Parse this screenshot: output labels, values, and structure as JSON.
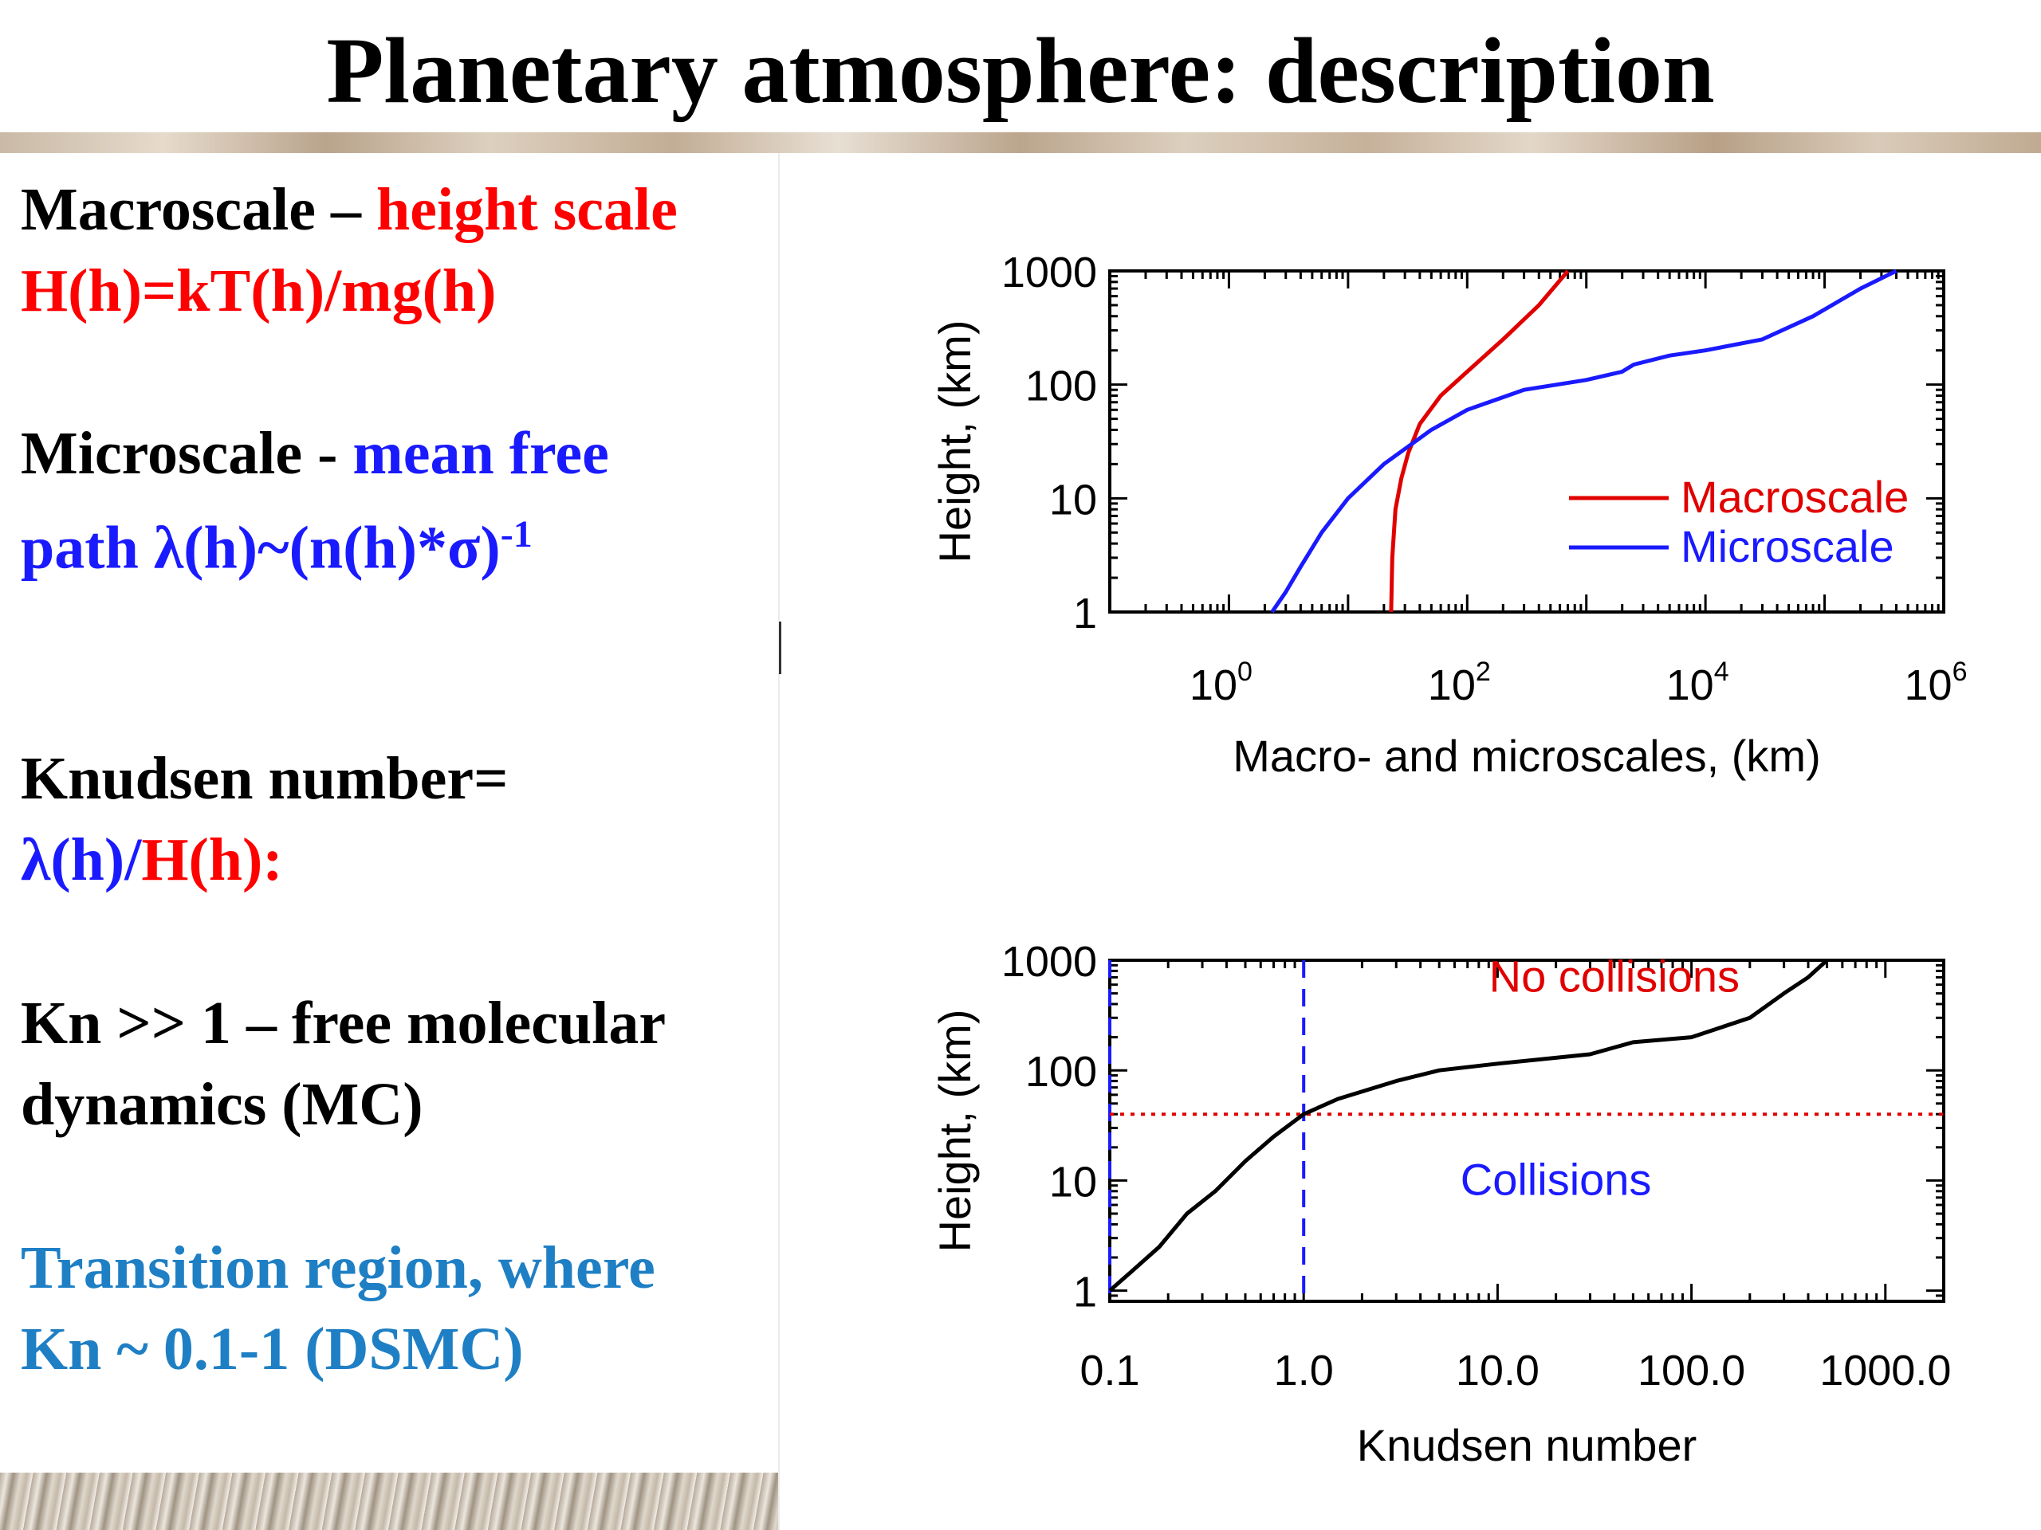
{
  "slide": {
    "title": "Planetary atmosphere: description",
    "left_text": {
      "macro_label": "Macroscale –",
      "macro_highlight": "height scale",
      "macro_formula": "H(h)=kT(h)/mg(h)",
      "micro_label": "Microscale -",
      "micro_highlight_line1": "mean free",
      "micro_formula": "path λ(h)~(n(h)*σ)",
      "micro_formula_exp": "-1",
      "knudsen_label": "Knudsen number=",
      "knudsen_lambda": "λ(h)/",
      "knudsen_H": "H(h):",
      "kn_line1": "Kn >> 1 – free molecular",
      "kn_line2": "dynamics  (MC)",
      "transition_line1": "Transition region, where",
      "transition_line2": "Kn ~ 0.1-1  (DSMC)"
    }
  },
  "colors": {
    "red": "#ff0000",
    "blue": "#1a1aff",
    "teal": "#1f7fc4",
    "black": "#000000"
  },
  "chart_data": [
    {
      "type": "line",
      "xscale": "log",
      "yscale": "log",
      "xlim": [
        0.1,
        1000000
      ],
      "ylim": [
        1,
        1000
      ],
      "xlabel": "Macro- and microscales, (km)",
      "ylabel": "Height, (km)",
      "x_ticks": [
        {
          "value": 1,
          "base": "10",
          "exp": "0"
        },
        {
          "value": 100,
          "base": "10",
          "exp": "2"
        },
        {
          "value": 10000,
          "base": "10",
          "exp": "4"
        },
        {
          "value": 1000000,
          "base": "10",
          "exp": "6"
        }
      ],
      "y_ticks": [
        {
          "value": 1,
          "label": "1"
        },
        {
          "value": 10,
          "label": "10"
        },
        {
          "value": 100,
          "label": "100"
        },
        {
          "value": 1000,
          "label": "1000"
        }
      ],
      "legend_position": "bottom-right",
      "series": [
        {
          "name": "Macroscale",
          "color": "#e00000",
          "x": [
            23,
            23.5,
            25,
            28,
            32,
            40,
            60,
            100,
            200,
            400,
            700
          ],
          "y": [
            1,
            3,
            8,
            15,
            25,
            45,
            80,
            130,
            250,
            500,
            1000
          ]
        },
        {
          "name": "Microscale",
          "color": "#1a1aff",
          "x": [
            2.3,
            3,
            4,
            6,
            10,
            20,
            50,
            100,
            300,
            1000,
            2000,
            2500,
            5000,
            10000,
            30000,
            80000,
            200000,
            400000
          ],
          "y": [
            1,
            1.5,
            2.5,
            5,
            10,
            20,
            40,
            60,
            90,
            110,
            130,
            150,
            180,
            200,
            250,
            400,
            700,
            1000
          ]
        }
      ]
    },
    {
      "type": "line",
      "xscale": "log",
      "yscale": "log",
      "xlim": [
        0.1,
        2000
      ],
      "ylim": [
        0.8,
        1000
      ],
      "xlabel": "Knudsen number",
      "ylabel": "Height, (km)",
      "x_ticks": [
        {
          "value": 0.1,
          "label": "0.1"
        },
        {
          "value": 1,
          "label": "1.0"
        },
        {
          "value": 10,
          "label": "10.0"
        },
        {
          "value": 100,
          "label": "100.0"
        },
        {
          "value": 1000,
          "label": "1000.0"
        }
      ],
      "y_ticks": [
        {
          "value": 1,
          "label": "1"
        },
        {
          "value": 10,
          "label": "10"
        },
        {
          "value": 100,
          "label": "100"
        },
        {
          "value": 1000,
          "label": "1000"
        }
      ],
      "vlines": [
        0.1,
        1
      ],
      "vline_color": "#1a1aff",
      "hline": 40,
      "hline_color": "#e00000",
      "annotations": [
        {
          "text": "No collisions",
          "x": 40,
          "y": 700,
          "color": "#e00000"
        },
        {
          "text": "Collisions",
          "x": 20,
          "y": 10,
          "color": "#1a1aff"
        }
      ],
      "series": [
        {
          "color": "#000000",
          "x": [
            0.1,
            0.13,
            0.18,
            0.25,
            0.35,
            0.5,
            0.7,
            1,
            1.5,
            3,
            5,
            10,
            30,
            50,
            100,
            200,
            300,
            400,
            500
          ],
          "y": [
            1,
            1.5,
            2.5,
            5,
            8,
            15,
            25,
            40,
            55,
            80,
            100,
            115,
            140,
            180,
            200,
            300,
            500,
            700,
            1000
          ]
        }
      ]
    }
  ]
}
